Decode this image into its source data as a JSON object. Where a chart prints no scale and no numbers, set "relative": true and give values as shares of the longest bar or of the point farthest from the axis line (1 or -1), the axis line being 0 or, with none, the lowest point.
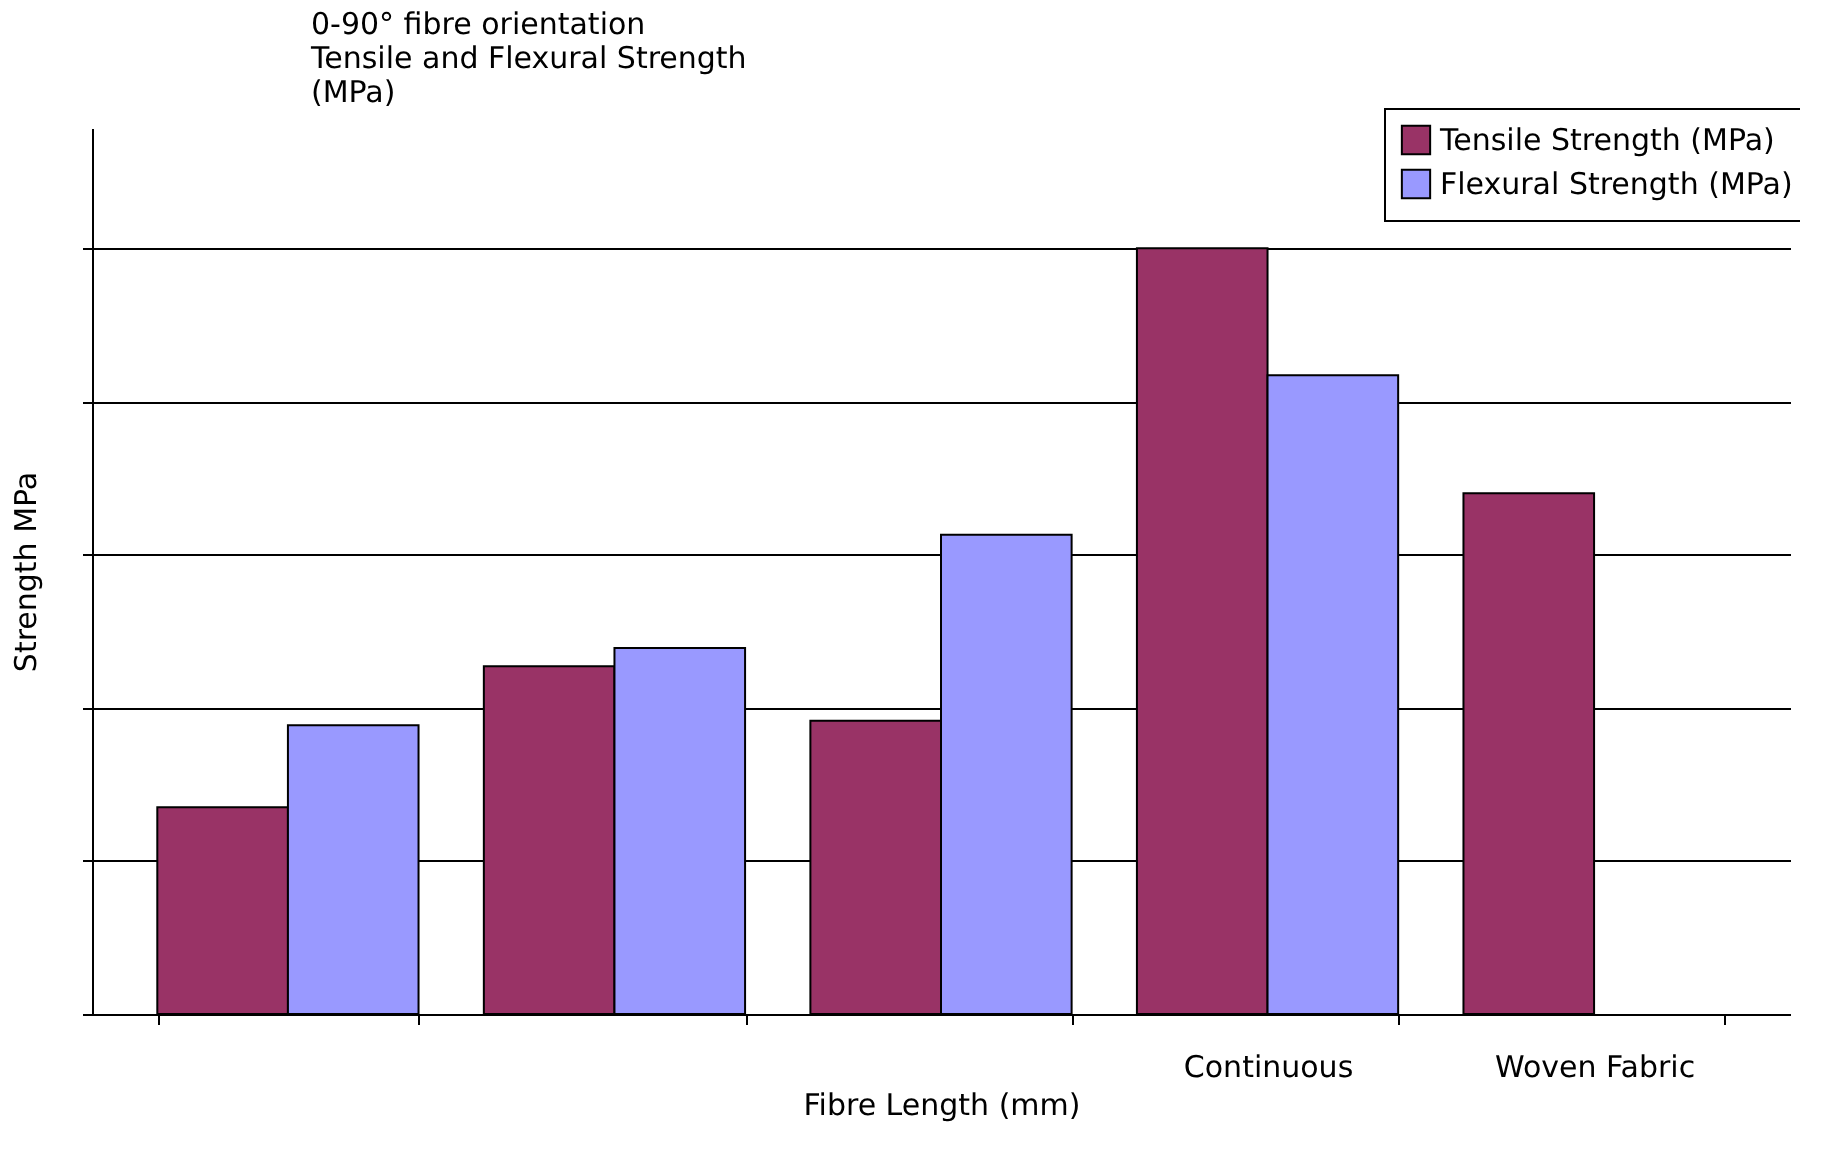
{
  "chart_data": {
    "type": "bar",
    "relative": true,
    "title": "0-90° fibre orientation\nTensile and Flexural Strength\n(MPa)",
    "xlabel": "Fibre Length (mm)",
    "ylabel": "Strength MPa",
    "categories": [
      null,
      null,
      null,
      "Continuous",
      "Woven Fabric"
    ],
    "series": [
      {
        "name": "Tensile Strength (MPa)",
        "color": "#993366",
        "values": [
          0.27,
          0.454,
          0.383,
          1,
          0.68
        ]
      },
      {
        "name": "Flexural Strength (MPa)",
        "color": "#9999ff",
        "values": [
          0.377,
          0.478,
          0.626,
          0.834,
          null
        ]
      }
    ],
    "grid": "y",
    "legend": "top right"
  }
}
